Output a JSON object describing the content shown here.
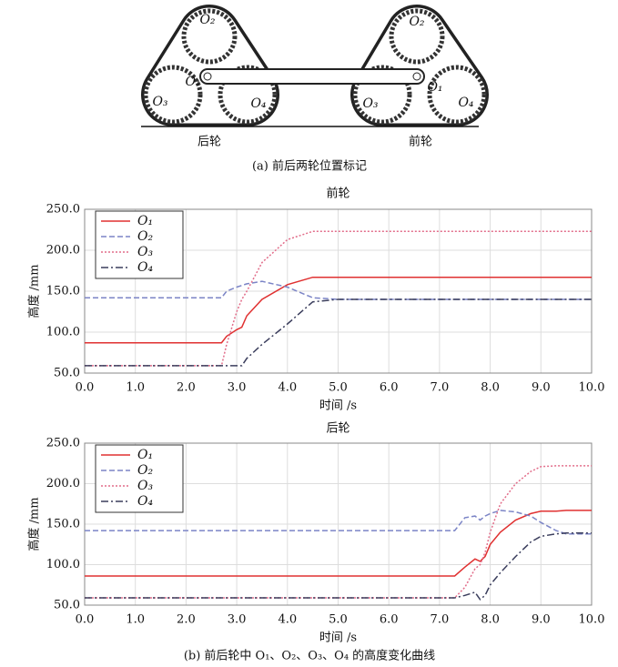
{
  "diagram": {
    "labels": [
      "O₂",
      "O₁",
      "O₃",
      "O₄"
    ],
    "rear": "后轮",
    "front": "前轮",
    "caption": "(a) 前后两轮位置标记"
  },
  "chart_data": [
    {
      "type": "line",
      "title": "前轮",
      "x_label": "时间 /s",
      "y_label": "高度 /mm",
      "x": [
        0,
        2.7,
        2.8,
        3.0,
        3.1,
        3.2,
        3.5,
        4.0,
        4.5,
        5,
        6,
        7,
        8,
        9,
        10
      ],
      "series": [
        {
          "name": "O₁",
          "color": "#e03030",
          "dash": "solid",
          "values": [
            87,
            87,
            95,
            103,
            106,
            120,
            140,
            158,
            167,
            167,
            167,
            167,
            167,
            167,
            167
          ]
        },
        {
          "name": "O₂",
          "color": "#7b84c6",
          "dash": "dashed",
          "values": [
            142,
            142,
            150,
            155,
            157,
            159,
            162,
            155,
            142,
            140,
            140,
            140,
            140,
            140,
            140
          ]
        },
        {
          "name": "O₃",
          "color": "#e26d8a",
          "dash": "dotted",
          "values": [
            59,
            59,
            85,
            125,
            140,
            150,
            185,
            213,
            223,
            223,
            223,
            223,
            223,
            223,
            223
          ]
        },
        {
          "name": "O₄",
          "color": "#3a3d5c",
          "dash": "dashdot",
          "values": [
            59,
            59,
            59,
            59,
            59,
            68,
            85,
            110,
            137,
            140,
            140,
            140,
            140,
            140,
            140
          ]
        }
      ],
      "xlim": [
        0,
        10
      ],
      "ylim": [
        50,
        250
      ],
      "xticks": [
        {
          "value": 0,
          "label": "0.0"
        },
        {
          "value": 1,
          "label": "1.0"
        },
        {
          "value": 2,
          "label": "2.0"
        },
        {
          "value": 3,
          "label": "3.0"
        },
        {
          "value": 4,
          "label": "4.0"
        },
        {
          "value": 5,
          "label": "5.0"
        },
        {
          "value": 6,
          "label": "6.0"
        },
        {
          "value": 7,
          "label": "7.0"
        },
        {
          "value": 8,
          "label": "8.0"
        },
        {
          "value": 9,
          "label": "9.0"
        },
        {
          "value": 10,
          "label": "10.0"
        }
      ],
      "yticks": [
        {
          "value": 50,
          "label": "50.0"
        },
        {
          "value": 100,
          "label": "100.0"
        },
        {
          "value": 150,
          "label": "150.0"
        },
        {
          "value": 200,
          "label": "200.0"
        },
        {
          "value": 250,
          "label": "250.0"
        }
      ],
      "grid": true,
      "legend": "upper-left"
    },
    {
      "type": "line",
      "title": "后轮",
      "x_label": "时间 /s",
      "y_label": "高度 /mm",
      "x": [
        0,
        7.3,
        7.5,
        7.7,
        7.8,
        7.9,
        8.0,
        8.2,
        8.5,
        8.8,
        9.0,
        9.3,
        9.5,
        10
      ],
      "series": [
        {
          "name": "O₁",
          "color": "#e03030",
          "dash": "solid",
          "values": [
            86,
            86,
            97,
            107,
            104,
            110,
            125,
            140,
            155,
            163,
            166,
            166,
            167,
            167
          ]
        },
        {
          "name": "O₂",
          "color": "#7b84c6",
          "dash": "dashed",
          "values": [
            142,
            142,
            158,
            160,
            155,
            160,
            163,
            167,
            165,
            160,
            152,
            142,
            138,
            138
          ]
        },
        {
          "name": "O₃",
          "color": "#e26d8a",
          "dash": "dotted",
          "values": [
            59,
            59,
            72,
            95,
            100,
            115,
            140,
            175,
            200,
            215,
            221,
            222,
            222,
            222
          ]
        },
        {
          "name": "O₄",
          "color": "#3a3d5c",
          "dash": "dashdot",
          "values": [
            59,
            59,
            62,
            66,
            57,
            62,
            75,
            90,
            110,
            128,
            135,
            138,
            139,
            139
          ]
        }
      ],
      "xlim": [
        0,
        10
      ],
      "ylim": [
        50,
        250
      ],
      "xticks": [
        {
          "value": 0,
          "label": "0.0"
        },
        {
          "value": 1,
          "label": "1.0"
        },
        {
          "value": 2,
          "label": "2.0"
        },
        {
          "value": 3,
          "label": "3.0"
        },
        {
          "value": 4,
          "label": "4.0"
        },
        {
          "value": 5,
          "label": "5.0"
        },
        {
          "value": 6,
          "label": "6.0"
        },
        {
          "value": 7,
          "label": "7.0"
        },
        {
          "value": 8,
          "label": "8.0"
        },
        {
          "value": 9,
          "label": "9.0"
        },
        {
          "value": 10,
          "label": "10.0"
        }
      ],
      "yticks": [
        {
          "value": 50,
          "label": "50.0"
        },
        {
          "value": 100,
          "label": "100.0"
        },
        {
          "value": 150,
          "label": "150.0"
        },
        {
          "value": 200,
          "label": "200.0"
        },
        {
          "value": 250,
          "label": "250.0"
        }
      ],
      "grid": true,
      "legend": "upper-left"
    }
  ],
  "caption": "(b) 前后轮中 O₁、O₂、O₃、O₄ 的高度变化曲线"
}
